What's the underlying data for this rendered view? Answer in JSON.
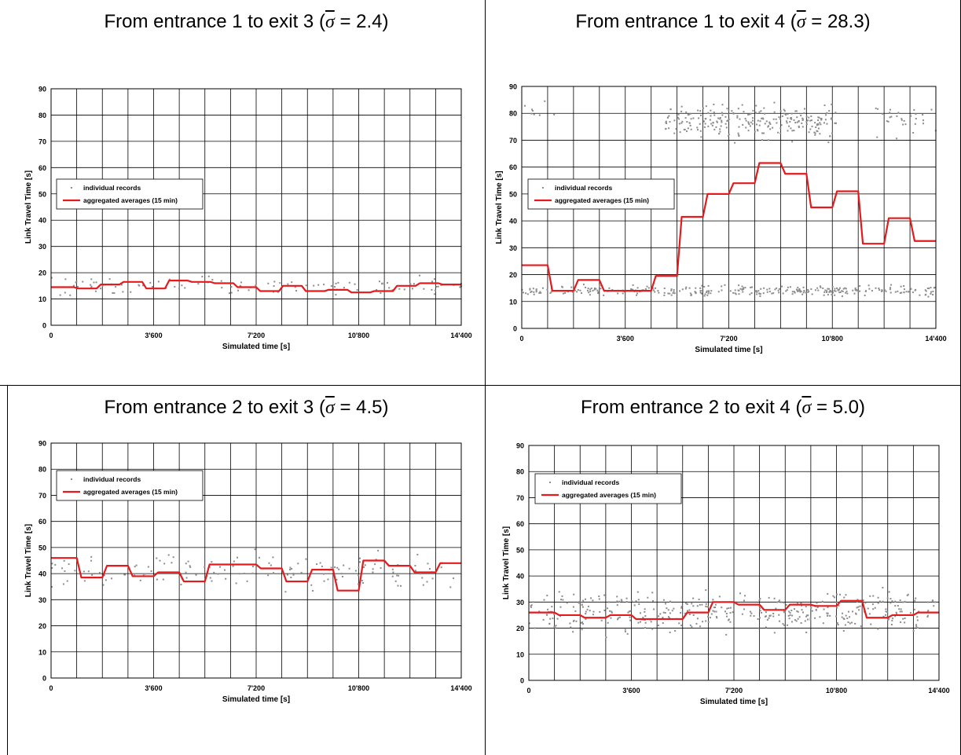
{
  "legend": {
    "points_label": "individual records",
    "line_label": "aggregated averages (15 min)"
  },
  "axes": {
    "xlabel": "Simulated time [s]",
    "ylabel": "Link Travel Time [s]",
    "xlim": [
      0,
      14400
    ],
    "ylim": [
      0,
      90
    ],
    "xticks": [
      0,
      3600,
      7200,
      10800,
      14400
    ],
    "xtick_labels": [
      "0",
      "3'600",
      "7'200",
      "10'800",
      "14'400"
    ],
    "yticks": [
      0,
      10,
      20,
      30,
      40,
      50,
      60,
      70,
      80,
      90
    ],
    "ytick_labels": [
      "0",
      "10",
      "20",
      "30",
      "40",
      "50",
      "60",
      "70",
      "80",
      "90"
    ]
  },
  "colors": {
    "line": "#e41a1c",
    "points": "#8c8c8c",
    "grid": "#000000"
  },
  "chart_data": [
    {
      "type": "scatter",
      "title_prefix": "From entrance 1 to exit 3 (",
      "sigma_symbol": "σ",
      "title_suffix": " = 2.4)",
      "legend_position": "left",
      "series": [
        {
          "name": "aggregated averages (15 min)",
          "type": "step-line",
          "x_step": 900,
          "values": [
            14.5,
            14,
            15.5,
            16.5,
            14,
            17,
            16.5,
            16,
            14.5,
            13,
            15,
            13,
            13.5,
            12.5,
            13,
            15,
            16,
            15.5
          ]
        },
        {
          "name": "individual records",
          "type": "scatter",
          "clusters": [
            {
              "x0": 0,
              "x1": 14400,
              "mean": 15,
              "spread": 2.5,
              "count": 120
            }
          ]
        }
      ]
    },
    {
      "type": "scatter",
      "title_prefix": "From entrance 1 to exit 4 (",
      "sigma_symbol": "σ",
      "title_suffix": " = 28.3)",
      "legend_position": "left",
      "series": [
        {
          "name": "aggregated averages (15 min)",
          "type": "step-line",
          "x_step": 900,
          "values": [
            23.5,
            14,
            18,
            14,
            14,
            19.5,
            41.5,
            50,
            54,
            61.5,
            57.5,
            45,
            51,
            31.5,
            41,
            32.5
          ]
        },
        {
          "name": "individual records",
          "type": "scatter",
          "clusters": [
            {
              "x0": 0,
              "x1": 14400,
              "mean": 14,
              "spread": 1.2,
              "count": 320
            },
            {
              "x0": 5000,
              "x1": 11000,
              "mean": 77,
              "spread": 4,
              "count": 260
            },
            {
              "x0": 12300,
              "x1": 14400,
              "mean": 78,
              "spread": 4,
              "count": 30
            },
            {
              "x0": 0,
              "x1": 1200,
              "mean": 81,
              "spread": 2,
              "count": 8
            }
          ]
        }
      ]
    },
    {
      "type": "scatter",
      "title_prefix": "From entrance 2 to exit 3 (",
      "sigma_symbol": "σ",
      "title_suffix": " = 4.5)",
      "legend_position": "top-left",
      "series": [
        {
          "name": "aggregated averages (15 min)",
          "type": "step-line",
          "x_step": 900,
          "values": [
            46,
            38.5,
            43,
            39,
            40.5,
            37,
            43.5,
            43.5,
            42,
            37,
            41.5,
            33.5,
            45,
            43,
            40.5,
            44
          ]
        },
        {
          "name": "individual records",
          "type": "scatter",
          "clusters": [
            {
              "x0": 0,
              "x1": 14400,
              "mean": 41,
              "spread": 4.5,
              "count": 150
            }
          ]
        }
      ]
    },
    {
      "type": "scatter",
      "title_prefix": "From entrance 2 to exit 4 (",
      "sigma_symbol": "σ",
      "title_suffix": " = 5.0)",
      "legend_position": "top-left",
      "series": [
        {
          "name": "aggregated averages (15 min)",
          "type": "step-line",
          "x_step": 900,
          "values": [
            26,
            25,
            24,
            25,
            23.5,
            23.5,
            26,
            30,
            29,
            27,
            29,
            28.5,
            30.5,
            24,
            25,
            26
          ]
        },
        {
          "name": "individual records",
          "type": "scatter",
          "clusters": [
            {
              "x0": 0,
              "x1": 14400,
              "mean": 26,
              "spread": 5,
              "count": 420
            }
          ]
        }
      ]
    }
  ]
}
